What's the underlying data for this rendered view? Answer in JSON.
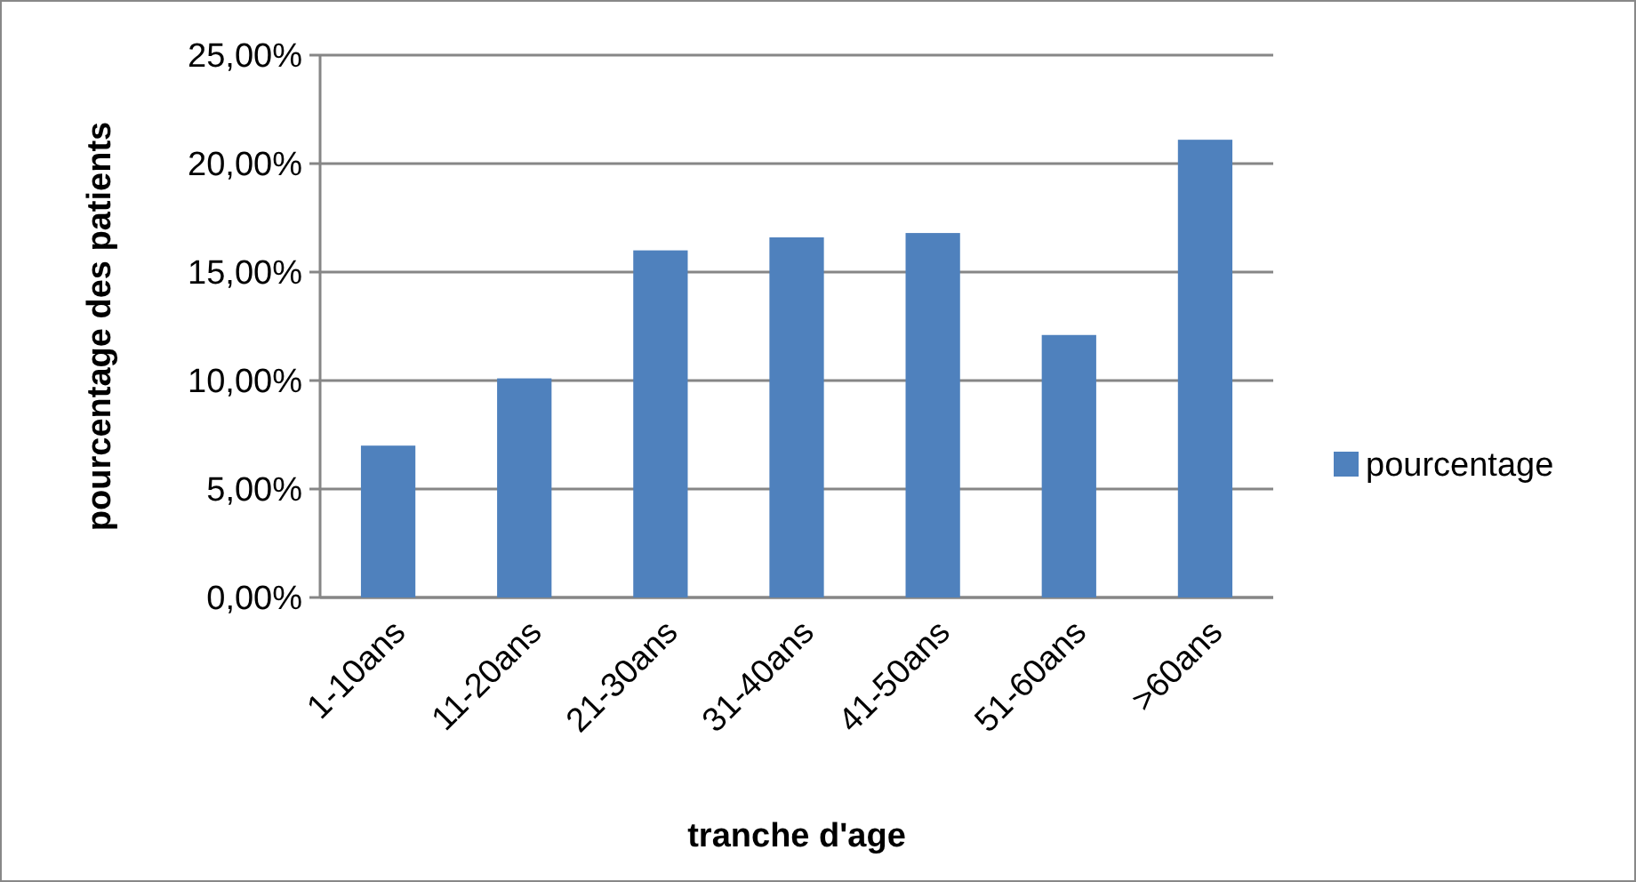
{
  "chart_data": {
    "type": "bar",
    "xlabel": "tranche d'age",
    "ylabel": "pourcentage des patients",
    "categories": [
      "1-10ans",
      "11-20ans",
      "21-30ans",
      "31-40ans",
      "41-50ans",
      "51-60ans",
      ">60ans"
    ],
    "series": [
      {
        "name": "pourcentage",
        "color": "#4f81bd",
        "values": [
          7.0,
          10.1,
          16.0,
          16.6,
          16.8,
          12.1,
          21.1
        ]
      }
    ],
    "ylim": [
      0,
      25
    ],
    "yticks": [
      {
        "value": 0,
        "label": "0,00%"
      },
      {
        "value": 5,
        "label": "5,00%"
      },
      {
        "value": 10,
        "label": "10,00%"
      },
      {
        "value": 15,
        "label": "15,00%"
      },
      {
        "value": 20,
        "label": "20,00%"
      },
      {
        "value": 25,
        "label": "25,00%"
      }
    ],
    "grid": "y",
    "legend": "right"
  }
}
